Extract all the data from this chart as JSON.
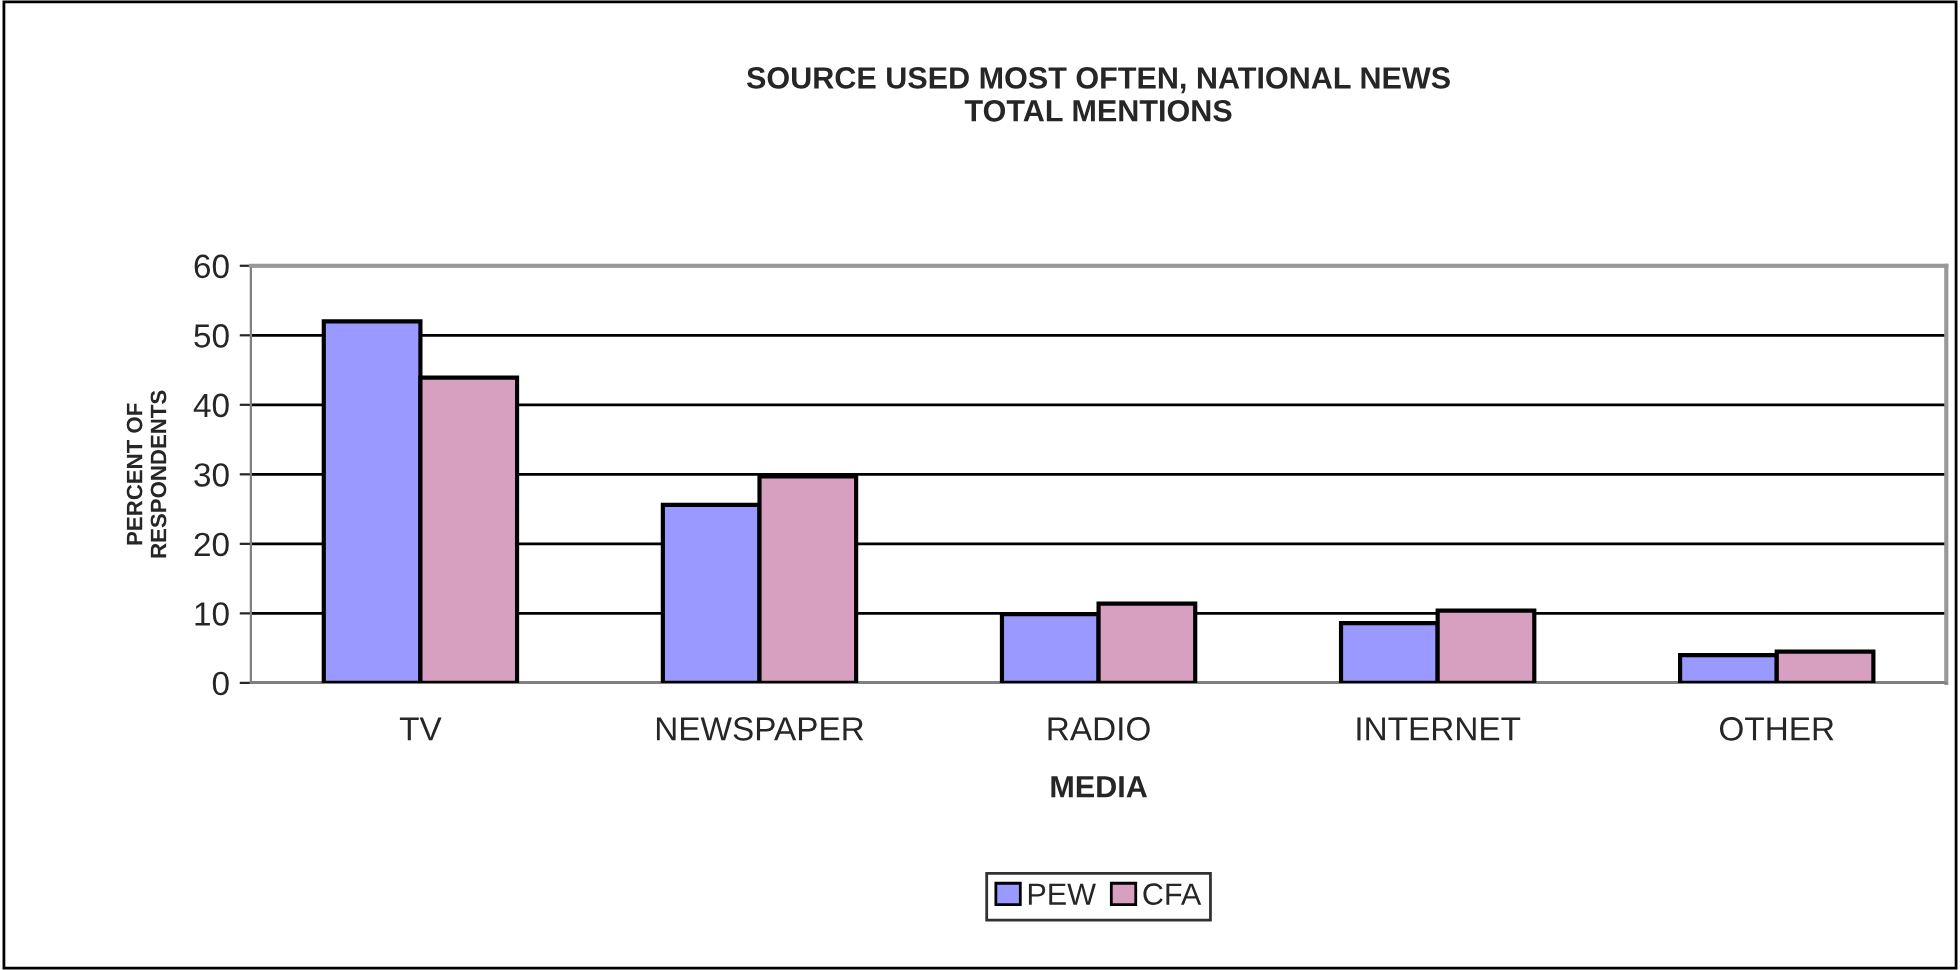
{
  "chart_data": {
    "type": "bar",
    "title": "SOURCE USED MOST OFTEN, NATIONAL NEWS\nTOTAL MENTIONS",
    "xlabel": "MEDIA",
    "ylabel": "PERCENT OF\nRESPONDENTS",
    "categories": [
      "TV",
      "NEWSPAPER",
      "RADIO",
      "INTERNET",
      "OTHER"
    ],
    "series": [
      {
        "name": "PEW",
        "color": "#9999ff",
        "values": [
          52,
          25.6,
          9.9,
          8.6,
          4.0
        ]
      },
      {
        "name": "CFA",
        "color": "#d8a0c0",
        "values": [
          43.9,
          29.7,
          11.4,
          10.4,
          4.5
        ]
      }
    ],
    "ylim": [
      0,
      60
    ],
    "yticks": [
      0,
      10,
      20,
      30,
      40,
      50,
      60
    ],
    "grid": "y",
    "legend": "bottom"
  }
}
